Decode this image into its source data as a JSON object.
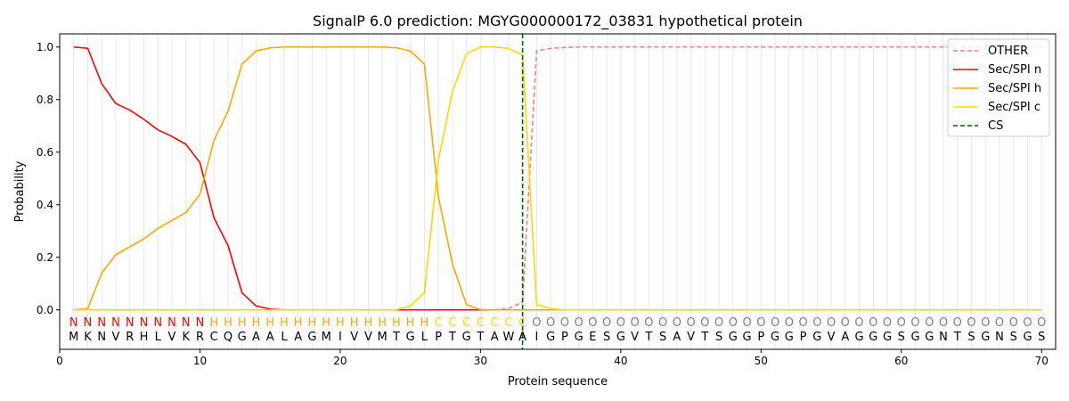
{
  "chart_data": {
    "type": "line",
    "title": "SignalP 6.0 prediction: MGYG000000172_03831 hypothetical protein",
    "xlabel": "Protein sequence",
    "ylabel": "Probability",
    "xlim": [
      0,
      71
    ],
    "ylim": [
      -0.15,
      1.05
    ],
    "xticks": [
      0,
      10,
      20,
      30,
      40,
      50,
      60,
      70
    ],
    "yticks": [
      0.0,
      0.2,
      0.4,
      0.6,
      0.8,
      1.0
    ],
    "ytick_labels": [
      "0.0",
      "0.2",
      "0.4",
      "0.6",
      "0.8",
      "1.0"
    ],
    "legend_position": "top-right",
    "sequence": "MKNVRHLVKRCQGAALAGMIVVMTGLPTGTAWAIGPGESGVTSAVTSGGPGGPGVAGGGSGGNTSGNSGS",
    "labels": "NNNNNNNNNNHHHHHHHHHHHHHHHHCCCCCCCOOOOOOOOOOOOOOOOOOOOOOOOOOOOOOOOOOOOO",
    "label_colors": {
      "N": "#ff0000",
      "H": "#ffa500",
      "C": "#ffd700",
      "O": "#808080"
    },
    "cs_position": 33,
    "cs_color": "#006400",
    "series": [
      {
        "name": "OTHER",
        "color": "#f08080",
        "dash": true,
        "values": [
          0,
          0,
          0,
          0,
          0,
          0,
          0,
          0,
          0,
          0,
          0,
          0,
          0,
          0,
          0,
          0,
          0,
          0,
          0,
          0,
          0,
          0,
          0,
          0,
          0,
          0,
          0,
          0,
          0,
          0,
          0,
          0.005,
          0.03,
          0.985,
          0.995,
          0.998,
          1,
          1,
          1,
          1,
          1,
          1,
          1,
          1,
          1,
          1,
          1,
          1,
          1,
          1,
          1,
          1,
          1,
          1,
          1,
          1,
          1,
          1,
          1,
          1,
          1,
          1,
          1,
          1,
          1,
          1,
          1,
          1,
          1,
          1
        ]
      },
      {
        "name": "Sec/SPI n",
        "color": "#ff0000",
        "dash": false,
        "values": [
          1.0,
          0.995,
          0.86,
          0.785,
          0.76,
          0.725,
          0.685,
          0.66,
          0.63,
          0.56,
          0.35,
          0.245,
          0.065,
          0.015,
          0.003,
          0,
          0,
          0,
          0,
          0,
          0,
          0,
          0,
          0,
          0,
          0,
          0,
          0,
          0,
          0,
          0,
          0,
          0,
          0,
          0,
          0,
          0,
          0,
          0,
          0,
          0,
          0,
          0,
          0,
          0,
          0,
          0,
          0,
          0,
          0,
          0,
          0,
          0,
          0,
          0,
          0,
          0,
          0,
          0,
          0,
          0,
          0,
          0,
          0,
          0,
          0,
          0,
          0,
          0,
          0
        ]
      },
      {
        "name": "Sec/SPI h",
        "color": "#ffa500",
        "dash": false,
        "values": [
          0,
          0.005,
          0.14,
          0.21,
          0.24,
          0.27,
          0.31,
          0.34,
          0.37,
          0.44,
          0.645,
          0.755,
          0.935,
          0.985,
          0.997,
          1,
          1,
          1,
          1,
          1,
          1,
          1,
          1,
          0.997,
          0.985,
          0.935,
          0.43,
          0.175,
          0.02,
          0.001,
          0,
          0,
          0,
          0,
          0,
          0,
          0,
          0,
          0,
          0,
          0,
          0,
          0,
          0,
          0,
          0,
          0,
          0,
          0,
          0,
          0,
          0,
          0,
          0,
          0,
          0,
          0,
          0,
          0,
          0,
          0,
          0,
          0,
          0,
          0,
          0,
          0,
          0,
          0,
          0
        ]
      },
      {
        "name": "Sec/SPI c",
        "color": "#ffd700",
        "dash": false,
        "values": [
          0,
          0,
          0,
          0,
          0,
          0,
          0,
          0,
          0,
          0,
          0,
          0,
          0,
          0,
          0,
          0,
          0,
          0,
          0,
          0,
          0,
          0,
          0,
          0,
          0.015,
          0.065,
          0.57,
          0.83,
          0.975,
          1.0,
          1.0,
          0.995,
          0.97,
          0.02,
          0.005,
          0,
          0,
          0,
          0,
          0,
          0,
          0,
          0,
          0,
          0,
          0,
          0,
          0,
          0,
          0,
          0,
          0,
          0,
          0,
          0,
          0,
          0,
          0,
          0,
          0,
          0,
          0,
          0,
          0,
          0,
          0,
          0,
          0,
          0,
          0
        ]
      }
    ],
    "cs_legend_label": "CS"
  }
}
